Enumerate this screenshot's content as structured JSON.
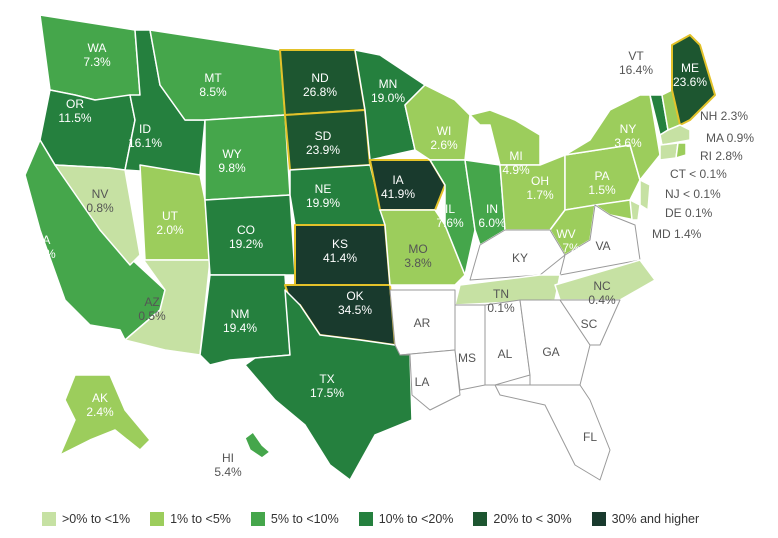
{
  "colors": {
    "bin0": "#c6e1a3",
    "bin1": "#9ccd5c",
    "bin2": "#45a64b",
    "bin3": "#25803e",
    "bin4": "#1d5630",
    "bin5": "#193a2d",
    "highlight_border": "#e3c22a",
    "no_data": "#ffffff"
  },
  "states": [
    {
      "abbr": "WA",
      "value": "7.3%",
      "bin": 2
    },
    {
      "abbr": "OR",
      "value": "11.5%",
      "bin": 3
    },
    {
      "abbr": "CA",
      "value": "6.8%",
      "bin": 2
    },
    {
      "abbr": "NV",
      "value": "0.8%",
      "bin": 0
    },
    {
      "abbr": "ID",
      "value": "16.1%",
      "bin": 3
    },
    {
      "abbr": "MT",
      "value": "8.5%",
      "bin": 2
    },
    {
      "abbr": "WY",
      "value": "9.8%",
      "bin": 2
    },
    {
      "abbr": "UT",
      "value": "2.0%",
      "bin": 1
    },
    {
      "abbr": "AZ",
      "value": "0.5%",
      "bin": 0
    },
    {
      "abbr": "CO",
      "value": "19.2%",
      "bin": 3
    },
    {
      "abbr": "NM",
      "value": "19.4%",
      "bin": 3
    },
    {
      "abbr": "ND",
      "value": "26.8%",
      "bin": 4
    },
    {
      "abbr": "SD",
      "value": "23.9%",
      "bin": 4
    },
    {
      "abbr": "NE",
      "value": "19.9%",
      "bin": 3
    },
    {
      "abbr": "KS",
      "value": "41.4%",
      "bin": 5
    },
    {
      "abbr": "OK",
      "value": "34.5%",
      "bin": 5
    },
    {
      "abbr": "TX",
      "value": "17.5%",
      "bin": 3
    },
    {
      "abbr": "MN",
      "value": "19.0%",
      "bin": 3
    },
    {
      "abbr": "IA",
      "value": "41.9%",
      "bin": 5
    },
    {
      "abbr": "MO",
      "value": "3.8%",
      "bin": 1
    },
    {
      "abbr": "WI",
      "value": "2.6%",
      "bin": 1
    },
    {
      "abbr": "IL",
      "value": "7.6%",
      "bin": 2
    },
    {
      "abbr": "IN",
      "value": "6.0%",
      "bin": 2
    },
    {
      "abbr": "MI",
      "value": "4.9%",
      "bin": 1
    },
    {
      "abbr": "OH",
      "value": "1.7%",
      "bin": 1
    },
    {
      "abbr": "PA",
      "value": "1.5%",
      "bin": 1
    },
    {
      "abbr": "NY",
      "value": "3.6%",
      "bin": 1
    },
    {
      "abbr": "WV",
      "value": "2.7%",
      "bin": 1
    },
    {
      "abbr": "TN",
      "value": "0.1%",
      "bin": 0
    },
    {
      "abbr": "NC",
      "value": "0.4%",
      "bin": 0
    },
    {
      "abbr": "VT",
      "value": "16.4%",
      "bin": 3
    },
    {
      "abbr": "ME",
      "value": "23.6%",
      "bin": 4
    },
    {
      "abbr": "NH",
      "value": "2.3%",
      "bin": 1
    },
    {
      "abbr": "MA",
      "value": "0.9%",
      "bin": 0
    },
    {
      "abbr": "RI",
      "value": "2.8%",
      "bin": 1
    },
    {
      "abbr": "CT",
      "value": "< 0.1%",
      "bin": 0
    },
    {
      "abbr": "NJ",
      "value": "< 0.1%",
      "bin": 0
    },
    {
      "abbr": "DE",
      "value": "0.1%",
      "bin": 0
    },
    {
      "abbr": "MD",
      "value": "1.4%",
      "bin": 1
    },
    {
      "abbr": "AK",
      "value": "2.4%",
      "bin": 1
    },
    {
      "abbr": "HI",
      "value": "5.4%",
      "bin": 2
    }
  ],
  "no_data_states": [
    "KY",
    "VA",
    "AR",
    "MS",
    "AL",
    "GA",
    "SC",
    "LA",
    "FL"
  ],
  "legend": [
    {
      "label": ">0% to <1%",
      "bin": 0
    },
    {
      "label": "1% to <5%",
      "bin": 1
    },
    {
      "label": "5% to <10%",
      "bin": 2
    },
    {
      "label": "10% to <20%",
      "bin": 3
    },
    {
      "label": "20% to < 30%",
      "bin": 4
    },
    {
      "label": "30% and higher",
      "bin": 5
    }
  ]
}
